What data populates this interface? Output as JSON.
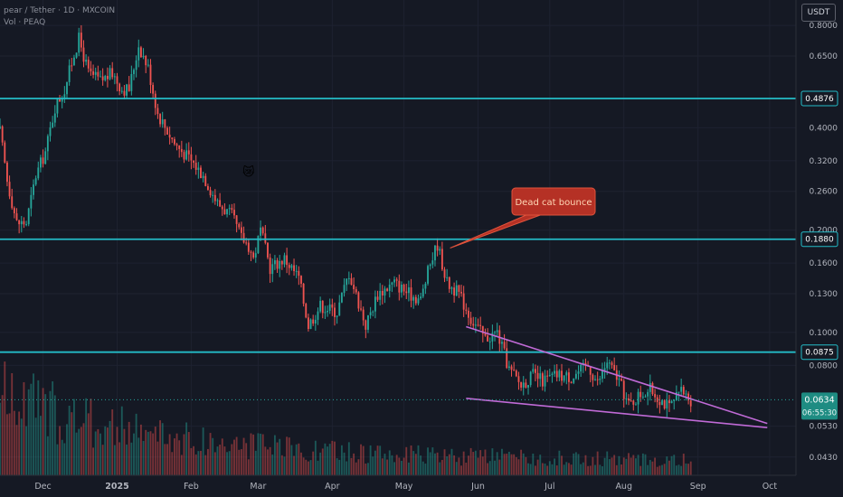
{
  "header": {
    "symbol_line": "pear / Tether · 1D · MXCOIN",
    "volume_line": "Vol · PEAQ",
    "currency_button": "USDT"
  },
  "colors": {
    "background": "#151924",
    "up": "#26a69a",
    "down": "#ef5350",
    "level_line": "#24bcc7",
    "wedge": "#c06ad6",
    "callout_bg": "#b53125",
    "callout_text": "#ffd7b5"
  },
  "annotations": {
    "callout": "Dead cat bounce",
    "emoji_icon": "crying-cat-emoji",
    "emoji_glyph": "😿"
  },
  "chart_data": {
    "type": "candlestick",
    "y_scale": "log",
    "ylim": [
      0.038,
      0.95
    ],
    "y_ticks": [
      0.8,
      0.65,
      0.4,
      0.32,
      0.26,
      0.2,
      0.16,
      0.13,
      0.1,
      0.08,
      0.053,
      0.043
    ],
    "y_tick_labels": [
      "0.8000",
      "0.6500",
      "0.4000",
      "0.3200",
      "0.2600",
      "0.2000",
      "0.1600",
      "0.1300",
      "0.1000",
      "0.0800",
      "0.0530",
      "0.0430"
    ],
    "x_ticks": [
      "Dec",
      "2025",
      "Feb",
      "Mar",
      "Apr",
      "May",
      "Jun",
      "Jul",
      "Aug",
      "Sep",
      "Oct"
    ],
    "x_tick_dates": [
      "2024-12-01",
      "2025-01-01",
      "2025-02-01",
      "2025-03-01",
      "2025-04-01",
      "2025-05-01",
      "2025-06-01",
      "2025-07-01",
      "2025-08-01",
      "2025-09-01",
      "2025-10-01"
    ],
    "x_range": [
      "2024-11-13",
      "2025-10-12"
    ],
    "horizontal_levels": [
      {
        "value": 0.4876,
        "label": "0.4876"
      },
      {
        "value": 0.188,
        "label": "0.1880"
      },
      {
        "value": 0.0875,
        "label": "0.0875"
      }
    ],
    "current_price": {
      "value": 0.0634,
      "label": "0.0634",
      "countdown": "06:55:30"
    },
    "wedge": {
      "upper": [
        [
          "2025-05-27",
          0.104
        ],
        [
          "2025-09-30",
          0.054
        ]
      ],
      "lower": [
        [
          "2025-05-27",
          0.064
        ],
        [
          "2025-09-30",
          0.0525
        ]
      ]
    },
    "annotation_points": [
      {
        "date": "2025-05-15",
        "value": 0.186,
        "text": "Dead cat bounce"
      },
      {
        "date": "2025-02-25",
        "value": 0.282,
        "text": "😿"
      }
    ],
    "close_anchors": [
      [
        "2024-11-13",
        0.39
      ],
      [
        "2024-11-16",
        0.28
      ],
      [
        "2024-11-20",
        0.21
      ],
      [
        "2024-11-24",
        0.21
      ],
      [
        "2024-11-28",
        0.29
      ],
      [
        "2024-12-02",
        0.34
      ],
      [
        "2024-12-06",
        0.46
      ],
      [
        "2024-12-10",
        0.52
      ],
      [
        "2024-12-14",
        0.66
      ],
      [
        "2024-12-16",
        0.73
      ],
      [
        "2024-12-20",
        0.58
      ],
      [
        "2024-12-25",
        0.55
      ],
      [
        "2024-12-30",
        0.58
      ],
      [
        "2025-01-03",
        0.52
      ],
      [
        "2025-01-06",
        0.52
      ],
      [
        "2025-01-10",
        0.7
      ],
      [
        "2025-01-14",
        0.6
      ],
      [
        "2025-01-18",
        0.44
      ],
      [
        "2025-01-25",
        0.36
      ],
      [
        "2025-02-01",
        0.32
      ],
      [
        "2025-02-06",
        0.29
      ],
      [
        "2025-02-12",
        0.24
      ],
      [
        "2025-02-18",
        0.22
      ],
      [
        "2025-02-22",
        0.19
      ],
      [
        "2025-02-25",
        0.18
      ],
      [
        "2025-02-27",
        0.165
      ],
      [
        "2025-03-02",
        0.2
      ],
      [
        "2025-03-06",
        0.155
      ],
      [
        "2025-03-12",
        0.165
      ],
      [
        "2025-03-18",
        0.145
      ],
      [
        "2025-03-22",
        0.105
      ],
      [
        "2025-03-27",
        0.12
      ],
      [
        "2025-04-03",
        0.115
      ],
      [
        "2025-04-08",
        0.15
      ],
      [
        "2025-04-15",
        0.105
      ],
      [
        "2025-04-20",
        0.13
      ],
      [
        "2025-04-27",
        0.14
      ],
      [
        "2025-05-03",
        0.13
      ],
      [
        "2025-05-08",
        0.125
      ],
      [
        "2025-05-12",
        0.16
      ],
      [
        "2025-05-15",
        0.182
      ],
      [
        "2025-05-19",
        0.14
      ],
      [
        "2025-05-24",
        0.13
      ],
      [
        "2025-05-29",
        0.11
      ],
      [
        "2025-06-04",
        0.096
      ],
      [
        "2025-06-09",
        0.1
      ],
      [
        "2025-06-14",
        0.078
      ],
      [
        "2025-06-19",
        0.07
      ],
      [
        "2025-06-24",
        0.075
      ],
      [
        "2025-06-28",
        0.072
      ],
      [
        "2025-07-04",
        0.075
      ],
      [
        "2025-07-10",
        0.074
      ],
      [
        "2025-07-17",
        0.08
      ],
      [
        "2025-07-21",
        0.071
      ],
      [
        "2025-07-25",
        0.082
      ],
      [
        "2025-07-30",
        0.072
      ],
      [
        "2025-08-03",
        0.061
      ],
      [
        "2025-08-08",
        0.066
      ],
      [
        "2025-08-12",
        0.068
      ],
      [
        "2025-08-16",
        0.064
      ],
      [
        "2025-08-20",
        0.06
      ],
      [
        "2025-08-25",
        0.067
      ],
      [
        "2025-08-29",
        0.0634
      ]
    ]
  }
}
